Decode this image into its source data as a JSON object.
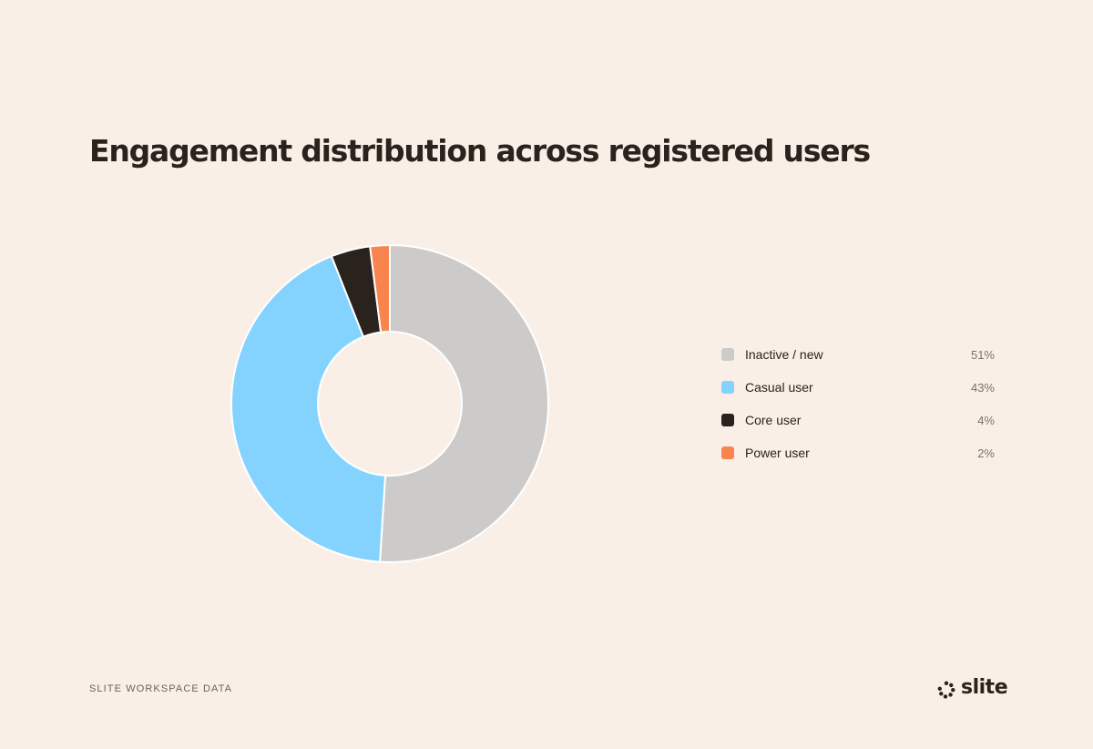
{
  "chart_data": {
    "type": "pie",
    "title": "Engagement distribution across registered users",
    "categories": [
      "Inactive / new",
      "Casual user",
      "Core user",
      "Power user"
    ],
    "values": [
      51,
      43,
      4,
      2
    ],
    "value_labels": [
      "51%",
      "43%",
      "4%",
      "2%"
    ],
    "colors": [
      "#cdcbca",
      "#84d3ff",
      "#2a231d",
      "#f9854e"
    ],
    "legend_position": "right",
    "donut": true
  },
  "footer": {
    "source": "SLITE WORKSPACE DATA",
    "brand": "slite"
  }
}
